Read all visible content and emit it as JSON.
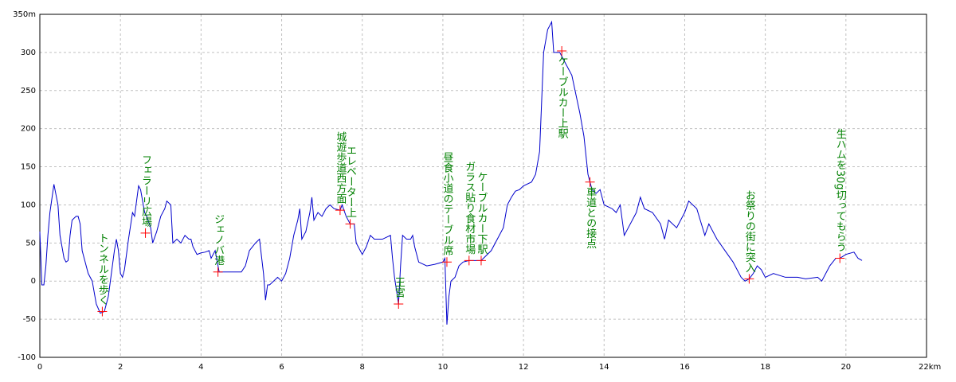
{
  "chart_data": {
    "type": "line",
    "x": [
      0,
      0.05,
      0.1,
      0.15,
      0.2,
      0.25,
      0.35,
      0.45,
      0.5,
      0.6,
      0.65,
      0.7,
      0.75,
      0.8,
      0.9,
      0.95,
      1.0,
      1.05,
      1.1,
      1.2,
      1.3,
      1.4,
      1.5,
      1.6,
      1.7,
      1.8,
      1.85,
      1.9,
      1.95,
      2.0,
      2.05,
      2.1,
      2.2,
      2.3,
      2.35,
      2.45,
      2.5,
      2.6,
      2.65,
      2.75,
      2.8,
      2.9,
      3.0,
      3.1,
      3.15,
      3.25,
      3.3,
      3.4,
      3.5,
      3.6,
      3.7,
      3.75,
      3.8,
      3.9,
      4.0,
      4.1,
      4.2,
      4.25,
      4.35,
      4.45,
      4.55,
      5.0,
      5.1,
      5.2,
      5.35,
      5.45,
      5.55,
      5.6,
      5.65,
      5.7,
      5.8,
      5.9,
      6.0,
      6.1,
      6.2,
      6.3,
      6.4,
      6.45,
      6.5,
      6.6,
      6.7,
      6.75,
      6.8,
      6.9,
      7.0,
      7.1,
      7.2,
      7.3,
      7.45,
      7.5,
      7.6,
      7.7,
      7.8,
      7.85,
      7.9,
      8.0,
      8.1,
      8.2,
      8.3,
      8.5,
      8.7,
      8.75,
      8.8,
      8.9,
      8.95,
      9.0,
      9.1,
      9.2,
      9.25,
      9.3,
      9.4,
      9.6,
      9.8,
      10.0,
      10.05,
      10.1,
      10.15,
      10.2,
      10.3,
      10.4,
      10.5,
      10.65,
      10.95,
      11.2,
      11.5,
      11.6,
      11.7,
      11.8,
      11.9,
      12.0,
      12.2,
      12.3,
      12.4,
      12.5,
      12.6,
      12.7,
      12.75,
      12.9,
      13.0,
      13.2,
      13.4,
      13.5,
      13.6,
      13.7,
      13.8,
      13.9,
      14.0,
      14.2,
      14.3,
      14.4,
      14.5,
      14.6,
      14.8,
      14.9,
      15.0,
      15.2,
      15.4,
      15.5,
      15.6,
      15.8,
      16.0,
      16.1,
      16.3,
      16.5,
      16.6,
      16.8,
      17.0,
      17.2,
      17.4,
      17.5,
      17.6,
      17.7,
      17.8,
      17.9,
      18.0,
      18.2,
      18.5,
      18.8,
      19.0,
      19.3,
      19.4,
      19.5,
      19.6,
      19.75,
      19.85,
      20.0,
      20.2,
      20.3,
      20.4
    ],
    "series": [
      {
        "color": "#0000cc",
        "values": [
          65,
          -5,
          -5,
          20,
          60,
          90,
          127,
          100,
          60,
          30,
          25,
          27,
          60,
          80,
          85,
          85,
          75,
          40,
          30,
          10,
          0,
          -30,
          -42,
          -40,
          -20,
          20,
          40,
          55,
          40,
          10,
          5,
          15,
          55,
          90,
          85,
          125,
          120,
          90,
          85,
          70,
          50,
          65,
          85,
          95,
          105,
          100,
          50,
          55,
          50,
          60,
          55,
          55,
          45,
          35,
          37,
          38,
          40,
          30,
          40,
          12,
          12,
          12,
          20,
          40,
          50,
          55,
          10,
          -25,
          -5,
          -5,
          0,
          5,
          0,
          10,
          30,
          60,
          80,
          95,
          55,
          65,
          90,
          110,
          80,
          90,
          85,
          95,
          100,
          95,
          93,
          100,
          85,
          75,
          75,
          50,
          45,
          35,
          45,
          60,
          55,
          55,
          60,
          30,
          5,
          -30,
          20,
          60,
          55,
          55,
          60,
          45,
          25,
          20,
          22,
          25,
          30,
          -57,
          -20,
          0,
          5,
          20,
          25,
          27,
          27,
          40,
          70,
          100,
          110,
          118,
          120,
          125,
          130,
          140,
          170,
          300,
          330,
          340,
          300,
          300,
          290,
          270,
          220,
          190,
          140,
          120,
          115,
          120,
          100,
          95,
          90,
          100,
          60,
          70,
          90,
          110,
          95,
          90,
          75,
          55,
          80,
          70,
          90,
          105,
          95,
          60,
          75,
          55,
          40,
          25,
          5,
          0,
          3,
          10,
          20,
          15,
          5,
          10,
          5,
          5,
          3,
          5,
          0,
          10,
          20,
          30,
          30,
          35,
          38,
          30,
          27
        ]
      }
    ],
    "annotations": [
      {
        "text": "トンネルを歩く",
        "x": 1.55,
        "y": -40
      },
      {
        "text": "フェラーリ広場",
        "x": 2.62,
        "y": 63
      },
      {
        "text": "ジェノバ港",
        "x": 4.42,
        "y": 12
      },
      {
        "text": "城遊歩道西方面",
        "x": 7.45,
        "y": 93
      },
      {
        "text": "エレベーター上",
        "x": 7.7,
        "y": 75
      },
      {
        "text": "王宮",
        "x": 8.9,
        "y": -30
      },
      {
        "text": "昼食小道のテーブル席",
        "x": 10.1,
        "y": 25
      },
      {
        "text": "ガラス貼り食材市場",
        "x": 10.65,
        "y": 27
      },
      {
        "text": "ケーブルカー下駅",
        "x": 10.95,
        "y": 27
      },
      {
        "text": "ケーブルカー上駅",
        "x": 12.95,
        "y": 302
      },
      {
        "text": "車道との接点",
        "x": 13.65,
        "y": 130
      },
      {
        "text": "お祭りの街に突入",
        "x": 17.6,
        "y": 3
      },
      {
        "text": "生ハムを30g切ってもらう",
        "x": 19.85,
        "y": 30
      }
    ],
    "marker_color": "#ff0000",
    "annotation_color": "#008000",
    "xlim": [
      0,
      22
    ],
    "ylim": [
      -100,
      350
    ],
    "xticks": [
      0,
      2,
      4,
      6,
      8,
      10,
      12,
      14,
      16,
      18,
      20,
      {
        "value": 22,
        "label": "22km"
      }
    ],
    "yticks": [
      -100,
      -50,
      0,
      50,
      100,
      150,
      200,
      250,
      300,
      {
        "value": 350,
        "label": "350m"
      }
    ],
    "grid": true
  }
}
